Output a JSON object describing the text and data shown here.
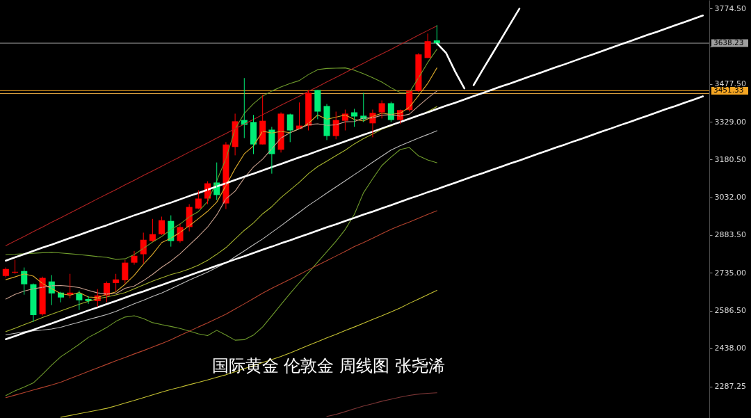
{
  "chart_data": {
    "type": "candlestick",
    "title": "国际黄金 伦敦金 周线图 张尧浠",
    "categories": [
      null,
      null,
      null,
      null,
      null,
      null,
      null,
      null,
      null,
      null,
      null,
      null,
      null,
      null,
      null,
      null,
      null,
      null,
      null,
      null,
      null,
      null,
      null,
      null,
      null,
      null,
      null,
      null,
      null,
      null,
      null,
      null,
      null,
      null,
      null,
      null,
      null,
      null,
      null,
      null,
      null,
      null,
      null,
      null,
      null,
      null,
      null,
      null,
      null,
      null,
      null,
      null,
      null,
      null,
      null,
      null,
      null,
      null,
      null,
      null,
      null,
      null,
      null,
      null,
      null,
      null,
      null,
      null,
      null,
      null,
      null,
      null,
      null,
      null,
      null,
      null,
      null
    ],
    "ohlc": [
      [
        2723,
        2756,
        2717,
        2750
      ],
      [
        2736,
        2786,
        2731,
        2739
      ],
      [
        2742,
        2756,
        2649,
        2690
      ],
      [
        2690,
        2693,
        2542,
        2569
      ],
      [
        2572,
        2720,
        2567,
        2715
      ],
      [
        2701,
        2726,
        2608,
        2654
      ],
      [
        2657,
        2660,
        2619,
        2638
      ],
      [
        2649,
        2731,
        2635,
        2657
      ],
      [
        2654,
        2665,
        2589,
        2627
      ],
      [
        2632,
        2643,
        2613,
        2624
      ],
      [
        2624,
        2671,
        2602,
        2646
      ],
      [
        2646,
        2701,
        2619,
        2695
      ],
      [
        2695,
        2731,
        2663,
        2709
      ],
      [
        2706,
        2786,
        2693,
        2775
      ],
      [
        2775,
        2821,
        2767,
        2802
      ],
      [
        2808,
        2893,
        2772,
        2865
      ],
      [
        2860,
        2947,
        2857,
        2887
      ],
      [
        2887,
        2956,
        2884,
        2942
      ],
      [
        2939,
        2961,
        2838,
        2860
      ],
      [
        2860,
        2928,
        2854,
        2915
      ],
      [
        2915,
        3005,
        2898,
        2994
      ],
      [
        2988,
        3060,
        2986,
        3027
      ],
      [
        3027,
        3095,
        3005,
        3087
      ],
      [
        3090,
        3169,
        3021,
        3041
      ],
      [
        3008,
        3249,
        2986,
        3240
      ],
      [
        3230,
        3361,
        3197,
        3331
      ],
      [
        3336,
        3501,
        3265,
        3317
      ],
      [
        3328,
        3356,
        3202,
        3240
      ],
      [
        3240,
        3435,
        3240,
        3333
      ],
      [
        3298,
        3309,
        3125,
        3202
      ],
      [
        3219,
        3366,
        3208,
        3361
      ],
      [
        3358,
        3361,
        3249,
        3295
      ],
      [
        3301,
        3405,
        3301,
        3314
      ],
      [
        3314,
        3454,
        3295,
        3443
      ],
      [
        3454,
        3454,
        3339,
        3369
      ],
      [
        3391,
        3399,
        3257,
        3273
      ],
      [
        3273,
        3369,
        3260,
        3336
      ],
      [
        3333,
        3377,
        3295,
        3361
      ],
      [
        3366,
        3380,
        3309,
        3350
      ],
      [
        3353,
        3443,
        3328,
        3339
      ],
      [
        3323,
        3377,
        3268,
        3364
      ],
      [
        3366,
        3413,
        3342,
        3402
      ],
      [
        3402,
        3408,
        3328,
        3336
      ],
      [
        3336,
        3377,
        3320,
        3375
      ],
      [
        3375,
        3454,
        3369,
        3451
      ],
      [
        3451,
        3599,
        3446,
        3594
      ],
      [
        3580,
        3676,
        3580,
        3646
      ],
      [
        3649,
        3709,
        3629,
        3638
      ],
      null,
      null,
      null,
      null,
      null,
      null,
      null,
      null,
      null,
      null,
      null,
      null,
      null,
      null,
      null,
      null,
      null,
      null,
      null,
      null,
      null,
      null,
      null,
      null,
      null,
      null,
      null,
      null,
      null
    ],
    "colors": [
      "#ff0000",
      "#ff0000",
      "#00ee76",
      "#00ee76",
      "#ff0000",
      "#00ee76",
      "#00ee76",
      "#ff0000",
      "#00ee76",
      "#00ee76",
      "#ff0000",
      "#ff0000",
      "#ff0000",
      "#ff0000",
      "#ff0000",
      "#ff0000",
      "#ff0000",
      "#ff0000",
      "#00ee76",
      "#ff0000",
      "#ff0000",
      "#ff0000",
      "#ff0000",
      "#00ee76",
      "#ff0000",
      "#ff0000",
      "#00ee76",
      "#00ee76",
      "#ff0000",
      "#00ee76",
      "#ff0000",
      "#00ee76",
      "#ff0000",
      "#ff0000",
      "#00ee76",
      "#00ee76",
      "#ff0000",
      "#ff0000",
      "#00ee76",
      "#00ee76",
      "#ff0000",
      "#ff0000",
      "#00ee76",
      "#ff0000",
      "#ff0000",
      "#ff0000",
      "#ff0000",
      "#00ee76",
      null,
      null,
      null,
      null,
      null,
      null,
      null,
      null,
      null,
      null,
      null,
      null,
      null,
      null,
      null,
      null,
      null,
      null,
      null,
      null,
      null,
      null,
      null,
      null,
      null,
      null,
      null,
      null,
      null
    ],
    "series": [
      {
        "type": "line",
        "color": "#dcaa2a",
        "values": [
          2708,
          2719,
          2731,
          2722,
          2693,
          2673,
          2653,
          2647,
          2658,
          2640,
          2638,
          2650,
          2660,
          2690,
          2725,
          2769,
          2808,
          2854,
          2871,
          2894,
          2920,
          2948,
          2977,
          3013,
          3078,
          3145,
          3203,
          3234,
          3292,
          3285,
          3291,
          3286,
          3301,
          3323,
          3356,
          3339,
          3347,
          3356,
          3338,
          3332,
          3350,
          3363,
          3358,
          3363,
          3386,
          3432,
          3480,
          3541,
          null,
          null,
          null,
          null,
          null,
          null,
          null,
          null,
          null,
          null,
          null,
          null,
          null,
          null,
          null,
          null,
          null,
          null,
          null,
          null,
          null,
          null,
          null,
          null,
          null,
          null,
          null,
          null,
          null
        ]
      },
      {
        "type": "line",
        "color": "#c9a08e",
        "values": [
          2632,
          2650,
          2663,
          2672,
          2678,
          2684,
          2685,
          2682,
          2677,
          2666,
          2656,
          2652,
          2653,
          2674,
          2683,
          2704,
          2729,
          2757,
          2781,
          2810,
          2844,
          2878,
          2915,
          2963,
          3026,
          3056,
          3108,
          3151,
          3182,
          3223,
          3265,
          3286,
          3302,
          3318,
          3321,
          3315,
          3317,
          3329,
          3330,
          3344,
          3344,
          3355,
          3357,
          3351,
          3359,
          3391,
          3422,
          3450,
          null,
          null,
          null,
          null,
          null,
          null,
          null,
          null,
          null,
          null,
          null,
          null,
          null,
          null,
          null,
          null,
          null,
          null,
          null,
          null,
          null,
          null,
          null,
          null,
          null,
          null,
          null,
          null,
          null
        ]
      },
      {
        "type": "line",
        "color": "#a6b52e",
        "values": [
          2504,
          2517,
          2531,
          2545,
          2559,
          2572,
          2585,
          2598,
          2611,
          2623,
          2633,
          2640,
          2648,
          2657,
          2672,
          2687,
          2702,
          2715,
          2728,
          2738,
          2750,
          2765,
          2784,
          2808,
          2834,
          2868,
          2902,
          2931,
          2967,
          2995,
          3031,
          3061,
          3091,
          3125,
          3153,
          3174,
          3196,
          3217,
          3242,
          3263,
          3281,
          3300,
          3312,
          3329,
          3340,
          3353,
          3369,
          3389,
          null,
          null,
          null,
          null,
          null,
          null,
          null,
          null,
          null,
          null,
          null,
          null,
          null,
          null,
          null,
          null,
          null,
          null,
          null,
          null,
          null,
          null,
          null,
          null,
          null,
          null,
          null,
          null,
          null
        ]
      },
      {
        "type": "line",
        "color": "#6f9c2c",
        "values": [
          2807,
          2808,
          2810,
          2812,
          2814,
          2816,
          2813,
          2810,
          2807,
          2803,
          2799,
          2796,
          2788,
          2790,
          2807,
          2831,
          2856,
          2878,
          2905,
          2927,
          2955,
          2976,
          3015,
          3097,
          3184,
          3300,
          3362,
          3400,
          3430,
          3450,
          3466,
          3480,
          3491,
          3515,
          3534,
          3539,
          3540,
          3541,
          3532,
          3518,
          3502,
          3485,
          3463,
          3444,
          3444,
          3502,
          3562,
          3614,
          null,
          null,
          null,
          null,
          null,
          null,
          null,
          null,
          null,
          null,
          null,
          null,
          null,
          null,
          null,
          null,
          null,
          null,
          null,
          null,
          null,
          null,
          null,
          null,
          null,
          null,
          null,
          null,
          null
        ]
      },
      {
        "type": "line",
        "color": "#6f9c2c",
        "values": [
          2252,
          2271,
          2286,
          2302,
          2336,
          2372,
          2405,
          2429,
          2454,
          2481,
          2500,
          2520,
          2544,
          2561,
          2566,
          2555,
          2539,
          2531,
          2524,
          2516,
          2506,
          2495,
          2488,
          2509,
          2490,
          2470,
          2472,
          2490,
          2522,
          2566,
          2610,
          2654,
          2696,
          2736,
          2777,
          2818,
          2859,
          2905,
          2965,
          3050,
          3105,
          3157,
          3190,
          3220,
          3228,
          3195,
          3179,
          3168,
          null,
          null,
          null,
          null,
          null,
          null,
          null,
          null,
          null,
          null,
          null,
          null,
          null,
          null,
          null,
          null,
          null,
          null,
          null,
          null,
          null,
          null,
          null,
          null,
          null,
          null,
          null,
          null,
          null
        ]
      },
      {
        "type": "line",
        "color": "#bdbdbd",
        "values": [
          2491,
          2497,
          2503,
          2507,
          2510,
          2514,
          2521,
          2531,
          2541,
          2551,
          2561,
          2571,
          2583,
          2598,
          2613,
          2627,
          2642,
          2656,
          2672,
          2689,
          2706,
          2722,
          2738,
          2756,
          2774,
          2798,
          2821,
          2845,
          2868,
          2894,
          2920,
          2947,
          2973,
          3000,
          3024,
          3049,
          3073,
          3097,
          3121,
          3145,
          3170,
          3194,
          3218,
          3235,
          3250,
          3265,
          3279,
          3294,
          null,
          null,
          null,
          null,
          null,
          null,
          null,
          null,
          null,
          null,
          null,
          null,
          null,
          null,
          null,
          null,
          null,
          null,
          null,
          null,
          null,
          null,
          null,
          null,
          null,
          null,
          null,
          null,
          null
        ]
      },
      {
        "type": "line",
        "color": "#b5432e",
        "values": [
          2244,
          2254,
          2264,
          2274,
          2284,
          2294,
          2305,
          2319,
          2333,
          2347,
          2361,
          2375,
          2389,
          2402,
          2416,
          2429,
          2443,
          2457,
          2472,
          2489,
          2505,
          2522,
          2538,
          2555,
          2572,
          2593,
          2613,
          2634,
          2655,
          2674,
          2692,
          2710,
          2728,
          2747,
          2765,
          2783,
          2801,
          2819,
          2838,
          2854,
          2871,
          2889,
          2906,
          2921,
          2935,
          2950,
          2965,
          2979,
          null,
          null,
          null,
          null,
          null,
          null,
          null,
          null,
          null,
          null,
          null,
          null,
          null,
          null,
          null,
          null,
          null,
          null,
          null,
          null,
          null,
          null,
          null,
          null,
          null,
          null,
          null,
          null,
          null
        ]
      },
      {
        "type": "line",
        "color": "#c6c232",
        "values": [
          null,
          null,
          null,
          null,
          null,
          null,
          2167,
          2174,
          2181,
          2188,
          2195,
          2202,
          2212,
          2223,
          2233,
          2244,
          2255,
          2266,
          2276,
          2285,
          2295,
          2304,
          2314,
          2324,
          2334,
          2346,
          2358,
          2370,
          2382,
          2394,
          2406,
          2420,
          2435,
          2450,
          2464,
          2479,
          2493,
          2508,
          2522,
          2537,
          2552,
          2566,
          2581,
          2597,
          2615,
          2632,
          2649,
          2666,
          null,
          null,
          null,
          null,
          null,
          null,
          null,
          null,
          null,
          null,
          null,
          null,
          null,
          null,
          null,
          null,
          null,
          null,
          null,
          null,
          null,
          null,
          null,
          null,
          null,
          null,
          null,
          null,
          null
        ]
      },
      {
        "type": "line",
        "color": "#7d3636",
        "values": [
          null,
          null,
          null,
          null,
          null,
          null,
          null,
          null,
          null,
          null,
          null,
          null,
          null,
          null,
          null,
          null,
          null,
          null,
          null,
          null,
          null,
          null,
          null,
          null,
          null,
          null,
          null,
          null,
          null,
          null,
          null,
          null,
          null,
          null,
          null,
          2170,
          2178,
          2189,
          2200,
          2211,
          2220,
          2230,
          2238,
          2246,
          2253,
          2258,
          2261,
          2263,
          null,
          null,
          null,
          null,
          null,
          null,
          null,
          null,
          null,
          null,
          null,
          null,
          null,
          null,
          null,
          null,
          null,
          null,
          null,
          null,
          null,
          null,
          null,
          null,
          null,
          null,
          null,
          null,
          null
        ]
      },
      {
        "type": "line",
        "color": "#ffffff",
        "values": [
          2783,
          2796,
          2808,
          2821,
          2834,
          2846,
          2859,
          2872,
          2884,
          2897,
          2910,
          2922,
          2935,
          2948,
          2961,
          2973,
          2986,
          2999,
          3011,
          3024,
          3037,
          3049,
          3062,
          3075,
          3087,
          3100,
          3113,
          3125,
          3138,
          3151,
          3163,
          3176,
          3189,
          3201,
          3214,
          3227,
          3239,
          3252,
          3265,
          3278,
          3290,
          3303,
          3316,
          3328,
          3341,
          3354,
          3366,
          3379,
          3392,
          3404,
          3417,
          3430,
          3442,
          3455,
          3468,
          3480,
          3493,
          3506,
          3518,
          3531,
          3544,
          3556,
          3569,
          3582,
          3594,
          3607,
          3620,
          3633,
          3645,
          3658,
          3671,
          3683,
          3696,
          3709,
          3721,
          3734,
          3747
        ]
      },
      {
        "type": "line",
        "color": "#ffffff",
        "values": [
          2474,
          2486,
          2499,
          2511,
          2524,
          2536,
          2549,
          2562,
          2574,
          2587,
          2599,
          2612,
          2624,
          2637,
          2650,
          2662,
          2675,
          2687,
          2700,
          2712,
          2725,
          2738,
          2750,
          2763,
          2775,
          2788,
          2800,
          2813,
          2826,
          2838,
          2851,
          2863,
          2876,
          2888,
          2901,
          2914,
          2926,
          2939,
          2951,
          2964,
          2976,
          2989,
          3001,
          3014,
          3027,
          3039,
          3052,
          3064,
          3077,
          3089,
          3102,
          3115,
          3127,
          3140,
          3152,
          3165,
          3177,
          3190,
          3203,
          3215,
          3228,
          3240,
          3253,
          3265,
          3278,
          3291,
          3303,
          3316,
          3328,
          3341,
          3353,
          3366,
          3379,
          3391,
          3404,
          3416,
          3429
        ]
      },
      {
        "type": "line",
        "color": "#b22222",
        "values": [
          2842,
          2860,
          2878,
          2897,
          2915,
          2934,
          2952,
          2970,
          2989,
          3007,
          3026,
          3044,
          3062,
          3081,
          3099,
          3118,
          3136,
          3154,
          3173,
          3191,
          3210,
          3228,
          3246,
          3265,
          3283,
          3302,
          3320,
          3338,
          3357,
          3375,
          3394,
          3412,
          3430,
          3449,
          3467,
          3486,
          3504,
          3522,
          3541,
          3559,
          3578,
          3596,
          3614,
          3633,
          3651,
          3670,
          3688,
          3706,
          null,
          null,
          null,
          null,
          null,
          null,
          null,
          null,
          null,
          null,
          null,
          null,
          null,
          null,
          null,
          null,
          null,
          null,
          null,
          null,
          null,
          null,
          null,
          null,
          null,
          null,
          null,
          null,
          null
        ]
      },
      {
        "type": "line",
        "color": "#ffffff",
        "values": [
          null,
          null,
          null,
          null,
          null,
          null,
          null,
          null,
          null,
          null,
          null,
          null,
          null,
          null,
          null,
          null,
          null,
          null,
          null,
          null,
          null,
          null,
          null,
          null,
          null,
          null,
          null,
          null,
          null,
          null,
          null,
          null,
          null,
          null,
          null,
          null,
          null,
          null,
          null,
          null,
          null,
          null,
          null,
          null,
          null,
          null,
          null,
          3638,
          3600,
          3526,
          3460,
          null,
          null,
          null,
          null,
          null,
          null,
          null,
          null,
          null,
          null,
          null,
          null,
          null,
          null,
          null,
          null,
          null,
          null,
          null,
          null,
          null,
          null,
          null,
          null,
          null,
          null
        ]
      },
      {
        "type": "line",
        "color": "#ffffff",
        "values": [
          null,
          null,
          null,
          null,
          null,
          null,
          null,
          null,
          null,
          null,
          null,
          null,
          null,
          null,
          null,
          null,
          null,
          null,
          null,
          null,
          null,
          null,
          null,
          null,
          null,
          null,
          null,
          null,
          null,
          null,
          null,
          null,
          null,
          null,
          null,
          null,
          null,
          null,
          null,
          null,
          null,
          null,
          null,
          null,
          null,
          null,
          null,
          null,
          null,
          null,
          null,
          3473,
          3534,
          3594,
          3654,
          3714,
          3774,
          null,
          null,
          null,
          null,
          null,
          null,
          null,
          null,
          null,
          null,
          null,
          null,
          null,
          null,
          null,
          null,
          null,
          null,
          null,
          null
        ]
      }
    ],
    "ref_lines": [
      {
        "axis": "y",
        "value": 3638.23,
        "label": "3638.23",
        "color": "#9e9e9e"
      },
      {
        "axis": "y",
        "value": 3451.33,
        "label": "3451.33",
        "color": "#f5a623"
      },
      {
        "axis": "y",
        "value": 3440,
        "label": null,
        "color": "#d9a040"
      }
    ],
    "ylim": [
      2164,
      3808
    ],
    "yticks": [
      {
        "value": 3774.5,
        "label": "3774.50"
      },
      {
        "value": 3626,
        "label": null
      },
      {
        "value": 3477.5,
        "label": "3477.50"
      },
      {
        "value": 3329,
        "label": "3329.00"
      },
      {
        "value": 3180.5,
        "label": "3180.50"
      },
      {
        "value": 3032,
        "label": "3032.00"
      },
      {
        "value": 2883.5,
        "label": "2883.50"
      },
      {
        "value": 2735,
        "label": "2735.00"
      },
      {
        "value": 2586.5,
        "label": "2586.50"
      },
      {
        "value": 2438,
        "label": "2438.00"
      },
      {
        "value": 2287.25,
        "label": "2287.25"
      }
    ],
    "tick_labels": "y"
  }
}
